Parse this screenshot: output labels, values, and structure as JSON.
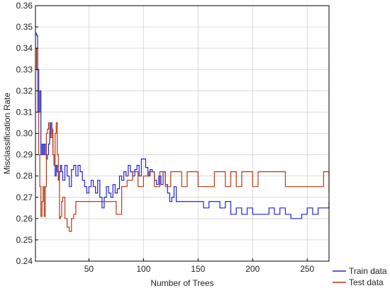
{
  "chart_data": {
    "type": "line",
    "xlabel": "Number of Trees",
    "ylabel": "Misclassification Rate",
    "xlim": [
      1,
      270
    ],
    "ylim": [
      0.24,
      0.36
    ],
    "x_ticks": [
      50,
      100,
      150,
      200,
      250
    ],
    "y_ticks": [
      0.24,
      0.25,
      0.26,
      0.27,
      0.28,
      0.29,
      0.3,
      0.31,
      0.32,
      0.33,
      0.34,
      0.35,
      0.36
    ],
    "y_tick_labels": [
      "0.24",
      "0.25",
      "0.26",
      "0.27",
      "0.28",
      "0.29",
      "0.30",
      "0.31",
      "0.32",
      "0.33",
      "0.34",
      "0.35",
      "0.36"
    ],
    "grid": true,
    "legend_position": "bottom-right",
    "series": [
      {
        "name": "Train data",
        "color": "#2222cc",
        "x": [
          1,
          2,
          3,
          4,
          5,
          6,
          7,
          8,
          9,
          10,
          11,
          12,
          13,
          14,
          15,
          16,
          17,
          18,
          19,
          20,
          21,
          22,
          23,
          24,
          25,
          26,
          28,
          30,
          32,
          34,
          36,
          38,
          40,
          42,
          44,
          46,
          48,
          50,
          52,
          54,
          56,
          58,
          60,
          62,
          64,
          66,
          68,
          70,
          72,
          74,
          76,
          78,
          80,
          82,
          84,
          86,
          88,
          90,
          92,
          94,
          96,
          98,
          100,
          102,
          104,
          106,
          108,
          110,
          112,
          114,
          116,
          118,
          120,
          122,
          124,
          126,
          128,
          130,
          135,
          140,
          145,
          150,
          155,
          160,
          165,
          170,
          175,
          180,
          185,
          190,
          195,
          200,
          205,
          210,
          215,
          220,
          225,
          230,
          235,
          240,
          245,
          250,
          255,
          260,
          265,
          270
        ],
        "y": [
          0.347,
          0.346,
          0.33,
          0.31,
          0.32,
          0.29,
          0.295,
          0.29,
          0.295,
          0.29,
          0.288,
          0.29,
          0.295,
          0.3,
          0.305,
          0.3,
          0.29,
          0.285,
          0.28,
          0.285,
          0.282,
          0.278,
          0.282,
          0.285,
          0.282,
          0.278,
          0.285,
          0.28,
          0.275,
          0.283,
          0.285,
          0.28,
          0.285,
          0.282,
          0.278,
          0.275,
          0.272,
          0.275,
          0.278,
          0.275,
          0.272,
          0.278,
          0.27,
          0.265,
          0.27,
          0.275,
          0.272,
          0.27,
          0.276,
          0.272,
          0.274,
          0.28,
          0.278,
          0.282,
          0.28,
          0.285,
          0.282,
          0.28,
          0.283,
          0.285,
          0.28,
          0.288,
          0.288,
          0.284,
          0.28,
          0.283,
          0.282,
          0.278,
          0.276,
          0.28,
          0.276,
          0.282,
          0.276,
          0.272,
          0.268,
          0.27,
          0.275,
          0.268,
          0.268,
          0.268,
          0.268,
          0.268,
          0.265,
          0.268,
          0.268,
          0.265,
          0.268,
          0.262,
          0.265,
          0.262,
          0.265,
          0.262,
          0.262,
          0.262,
          0.265,
          0.262,
          0.265,
          0.262,
          0.26,
          0.26,
          0.262,
          0.265,
          0.262,
          0.265,
          0.265,
          0.268
        ]
      },
      {
        "name": "Test data",
        "color": "#b23a12",
        "x": [
          1,
          2,
          3,
          4,
          5,
          6,
          7,
          8,
          9,
          10,
          11,
          12,
          13,
          14,
          15,
          16,
          17,
          18,
          19,
          20,
          21,
          22,
          23,
          24,
          25,
          26,
          28,
          30,
          32,
          34,
          36,
          38,
          40,
          42,
          44,
          46,
          48,
          50,
          55,
          60,
          65,
          70,
          75,
          80,
          85,
          90,
          95,
          100,
          105,
          110,
          115,
          120,
          125,
          130,
          135,
          140,
          145,
          150,
          155,
          160,
          165,
          170,
          175,
          180,
          185,
          190,
          195,
          200,
          205,
          210,
          215,
          220,
          225,
          230,
          235,
          240,
          245,
          250,
          255,
          260,
          265,
          270
        ],
        "y": [
          0.34,
          0.33,
          0.31,
          0.29,
          0.275,
          0.261,
          0.268,
          0.275,
          0.261,
          0.275,
          0.3,
          0.302,
          0.305,
          0.3,
          0.298,
          0.302,
          0.29,
          0.285,
          0.3,
          0.305,
          0.29,
          0.278,
          0.26,
          0.261,
          0.268,
          0.27,
          0.26,
          0.256,
          0.254,
          0.26,
          0.262,
          0.268,
          0.268,
          0.268,
          0.268,
          0.268,
          0.268,
          0.268,
          0.268,
          0.268,
          0.268,
          0.268,
          0.262,
          0.275,
          0.278,
          0.282,
          0.275,
          0.28,
          0.282,
          0.275,
          0.282,
          0.275,
          0.282,
          0.282,
          0.275,
          0.282,
          0.282,
          0.275,
          0.275,
          0.275,
          0.282,
          0.282,
          0.275,
          0.282,
          0.275,
          0.282,
          0.282,
          0.275,
          0.282,
          0.282,
          0.282,
          0.282,
          0.282,
          0.275,
          0.275,
          0.275,
          0.275,
          0.275,
          0.275,
          0.275,
          0.282,
          0.272
        ]
      }
    ]
  }
}
